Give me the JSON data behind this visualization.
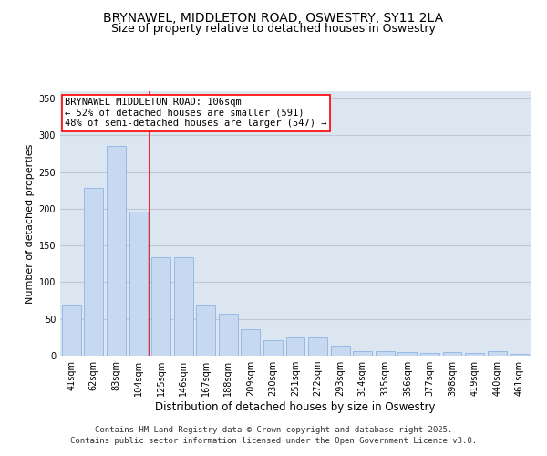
{
  "title": "BRYNAWEL, MIDDLETON ROAD, OSWESTRY, SY11 2LA",
  "subtitle": "Size of property relative to detached houses in Oswestry",
  "xlabel": "Distribution of detached houses by size in Oswestry",
  "ylabel": "Number of detached properties",
  "categories": [
    "41sqm",
    "62sqm",
    "83sqm",
    "104sqm",
    "125sqm",
    "146sqm",
    "167sqm",
    "188sqm",
    "209sqm",
    "230sqm",
    "251sqm",
    "272sqm",
    "293sqm",
    "314sqm",
    "335sqm",
    "356sqm",
    "377sqm",
    "398sqm",
    "419sqm",
    "440sqm",
    "461sqm"
  ],
  "values": [
    70,
    228,
    285,
    196,
    134,
    134,
    70,
    57,
    36,
    21,
    25,
    25,
    14,
    6,
    6,
    5,
    4,
    5,
    4,
    6,
    2
  ],
  "bar_color": "#c6d9f0",
  "bar_edge_color": "#8db4e2",
  "vline_index": 3,
  "vline_color": "red",
  "annotation_text": "BRYNAWEL MIDDLETON ROAD: 106sqm\n← 52% of detached houses are smaller (591)\n48% of semi-detached houses are larger (547) →",
  "annotation_box_color": "white",
  "annotation_box_edge_color": "red",
  "ylim": [
    0,
    360
  ],
  "yticks": [
    0,
    50,
    100,
    150,
    200,
    250,
    300,
    350
  ],
  "grid_color": "#c0c8d8",
  "background_color": "#dce6f1",
  "footer_text": "Contains HM Land Registry data © Crown copyright and database right 2025.\nContains public sector information licensed under the Open Government Licence v3.0.",
  "title_fontsize": 10,
  "subtitle_fontsize": 9,
  "xlabel_fontsize": 8.5,
  "ylabel_fontsize": 8,
  "tick_fontsize": 7,
  "annotation_fontsize": 7.5,
  "footer_fontsize": 6.5
}
